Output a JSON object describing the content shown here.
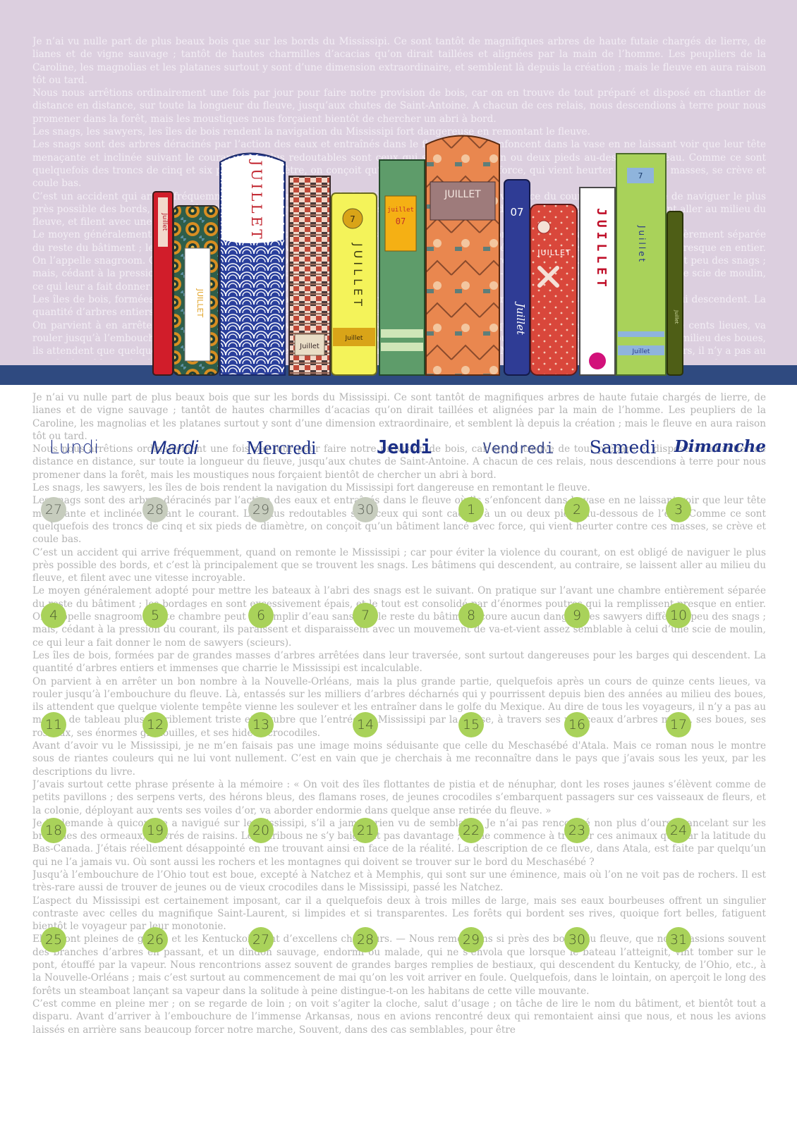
{
  "text": {
    "paragraphs": [
      "Je n’ai vu nulle part de plus beaux bois que sur les bords du Mississipi. Ce sont tantôt de magnifiques arbres de haute futaie chargés de lierre, de lianes et de vigne sauvage ; tantôt de hautes charmilles d’acacias qu’on dirait taillées et alignées par la main de l’homme. Les peupliers de la Caroline, les magnolias et les platanes surtout y sont d’une dimension extraordinaire, et semblent là depuis la création ; mais le fleuve en aura raison tôt ou tard.",
      "Nous nous arrêtions ordinairement une fois par jour pour faire notre provision de bois, car on en trouve de tout préparé et disposé en chantier de distance en distance, sur toute la longueur du fleuve, jusqu’aux chutes de Saint-Antoine. A chacun de ces relais, nous descendions à terre pour nous promener dans la forêt, mais les moustiques nous forçaient bientôt de chercher un abri à bord.",
      "Les snags, les sawyers, les îles de bois rendent la navigation du Mississipi fort dangereuse en remontant le fleuve.",
      "Les snags sont des arbres déracinés par l’action des eaux et entraînés dans le fleuve où ils s’enfoncent dans la vase en ne laissant voir que leur tête menaçante et inclinée suivant le courant. Les plus redoutables sont ceux qui sont cachés à un ou deux pieds au-dessous de l’eau. Comme ce sont quelquefois des troncs de cinq et six pieds de diamètre, on conçoit qu’un bâtiment lancé avec force, qui vient heurter contre ces masses, se crève et coule bas.",
      "C’est un accident qui arrive fréquemment, quand on remonte le Mississipi ; car pour éviter la violence du courant, on est obligé de naviguer le plus près possible des bords, et c’est là principalement que se trouvent les snags. Les bâtimens qui descendent, au contraire, se laissent aller au milieu du fleuve, et filent avec une vitesse incroyable.",
      "Le moyen généralement adopté pour mettre les bateaux à l’abri des snags est le suivant. On pratique sur l’avant une chambre entièrement séparée du reste du bâtiment ; les bordages en sont excessivement épais, et le tout est consolidé par d’énormes poutres qui la remplissent presque en entier. On l’appelle snagroom. Cette chambre peut se remplir d’eau sans que le reste du bâtiment coure aucun danger. Les sawyers diffèrent peu des snags ; mais, cédant à la pression du courant, ils paraissent et disparaissent avec un mouvement de va-et-vient assez semblable à celui d’une scie de moulin, ce qui leur a fait donner le nom de sawyers (scieurs).",
      "Les îles de bois, formées par de grandes masses d’arbres arrêtées dans leur traversée, sont surtout dangereuses pour les barges qui descendent. La quantité d’arbres entiers et immenses que charrie le Mississipi est incalculable.",
      "On parvient à en arrêter un bon nombre à la Nouvelle-Orléans, mais la plus grande partie, quelquefois après un cours de quinze cents lieues, va rouler jusqu’à l’embouchure du fleuve. Là, entassés sur les milliers d’arbres décharnés qui y pourrissent depuis bien des années au milieu des boues, ils attendent que quelque violente tempête vienne les soulever et les entraîner dans le golfe du Mexique. Au dire de tous les voyageurs, il n’y a pas au monde de tableau plus horriblement triste et lugubre que l’entrée du Mississipi par la Balise, à travers ses monceaux d’arbres morts, ses boues, ses roseaux, ses énormes grenouilles, et ses hideux crocodiles.",
      "Avant d’avoir vu le Mississipi, je ne m’en faisais pas une image moins séduisante que celle du Meschasébé d'Atala. Mais ce roman nous le montre sous de riantes couleurs qui ne lui vont nullement. C’est en vain que je cherchais à me reconnaître dans le pays que j’avais sous les yeux, par les descriptions du livre.",
      "J’avais surtout cette phrase présente à la mémoire : « On voit des îles flottantes de pistia et de nénuphar, dont les roses jaunes s’élèvent comme de petits pavillons ; des serpens verts, des hérons bleus, des flamans roses, de jeunes crocodiles s’embarquent passagers sur ces vaisseaux de fleurs, et la colonie, déployant aux vents ses voiles d’or, va aborder endormie dans quelque anse retirée du fleuve. »",
      "Je le demande à quiconque a navigué sur le Mississipi, s’il a jamais rien vu de semblable. Je n’ai pas rencontré non plus d’ours chancelant sur les branches des ormeaux, enivrés de raisins. Les caribous ne s’y baignent pas davantage ; on ne commence à trouver ces animaux que par la latitude du Bas-Canada. J’étais réellement désappointé en me trouvant ainsi en face de la réalité. La description de ce fleuve, dans Atala, est faite par quelqu’un qui ne l’a jamais vu. Où sont aussi les rochers et les montagnes qui doivent se trouver sur le bord du Meschasébé ?",
      "Jusqu’à l’embouchure de l’Ohio tout est boue, excepté à Natchez et à Memphis, qui sont sur une éminence, mais où l’on ne voit pas de rochers. Il est très-rare aussi de trouver de jeunes ou de vieux crocodiles dans le Mississipi, passé les Natchez.",
      "L’aspect du Mississipi est certainement imposant, car il a quelquefois deux à trois milles de large, mais ses eaux bourbeuses offrent un singulier contraste avec celles du magnifique Saint-Laurent, si limpides et si transparentes. Les forêts qui bordent ses rives, quoique fort belles, fatiguent bientôt le voyageur par leur monotonie.",
      "Elles sont pleines de gibier, et les Kentuckois sont d’excellens chasseurs. — Nous remontions si près des bords du fleuve, que nous cassions souvent des branches d’arbres en passant, et un dindon sauvage, endormi ou malade, qui ne s’envola que lorsque le bateau l’atteignit, vint tomber sur le pont, étouffé par la vapeur. Nous rencontrions assez souvent de grandes barges remplies de bestiaux, qui descendent du Kentucky, de l’Ohio, etc., à la Nouvelle-Orléans ; mais c’est surtout au commencement de mai qu’on les voit arriver en foule. Quelquefois, dans le lointain, on aperçoit le long des forêts un steamboat lançant sa vapeur dans la solitude à peine distingue-t-on les habitans de cette ville mouvante.",
      "C’est comme en pleine mer ; on se regarde de loin ; on voit s’agiter la cloche, salut d’usage ; on tâche de lire le nom du bâtiment, et bientôt tout a disparu. Avant d’arriver à l’embouchure de l’immense Arkansas, nous en avions rencontré deux qui remontaient ainsi que nous, et nous les avions laissés en arrière sans beaucoup forcer notre marche, Souvent, dans des cas semblables, pour être"
    ]
  },
  "books": {
    "red_spine": "Juillet",
    "african_print": "JUILLET",
    "blue_waves": "JUILLET",
    "checkered": "Juillet",
    "yellow_number": "7",
    "yellow_title": "JUILLET",
    "yellow_foot": "Juillet",
    "green_label_top": "juillet",
    "green_label_num": "07",
    "orange_label": "JUILLET",
    "navy_num": "07",
    "navy_title": "Juillet",
    "red_floral": "JUILLET",
    "white_title": "JUILLET",
    "lime_num": "7",
    "lime_title": "Juillet",
    "lime_foot": "Juillet",
    "olive_title": "Juillet"
  },
  "calendar": {
    "days": [
      "Lundi",
      "Mardi",
      "Mercredi",
      "Jeudi",
      "Vendredi",
      "Samedi",
      "Dimanche"
    ],
    "weeks": [
      [
        {
          "d": "27",
          "prev": true
        },
        {
          "d": "28",
          "prev": true
        },
        {
          "d": "29",
          "prev": true
        },
        {
          "d": "30",
          "prev": true
        },
        {
          "d": "1"
        },
        {
          "d": "2"
        },
        {
          "d": "3"
        }
      ],
      [
        {
          "d": "4"
        },
        {
          "d": "5"
        },
        {
          "d": "6"
        },
        {
          "d": "7"
        },
        {
          "d": "8"
        },
        {
          "d": "9"
        },
        {
          "d": "10"
        }
      ],
      [
        {
          "d": "11"
        },
        {
          "d": "12"
        },
        {
          "d": "13"
        },
        {
          "d": "14"
        },
        {
          "d": "15"
        },
        {
          "d": "16"
        },
        {
          "d": "17"
        }
      ],
      [
        {
          "d": "18"
        },
        {
          "d": "19"
        },
        {
          "d": "20"
        },
        {
          "d": "21"
        },
        {
          "d": "22"
        },
        {
          "d": "23"
        },
        {
          "d": "24"
        }
      ],
      [
        {
          "d": "25"
        },
        {
          "d": "26"
        },
        {
          "d": "27"
        },
        {
          "d": "28"
        },
        {
          "d": "29"
        },
        {
          "d": "30"
        },
        {
          "d": "31"
        }
      ]
    ]
  },
  "colors": {
    "header_bg": "#dccfdf",
    "shelf": "#2f4a80",
    "day_current": "#a9d25a",
    "day_previous": "#c6ccbd",
    "weekday_text": "#1b2f86"
  }
}
